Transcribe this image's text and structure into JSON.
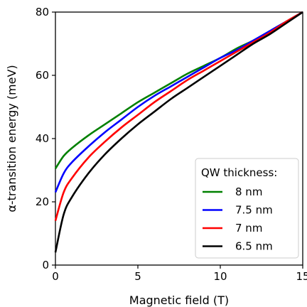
{
  "chart_data": {
    "type": "line",
    "xlabel": "Magnetic field (T)",
    "ylabel": "α-transition energy (meV)",
    "xlim": [
      0,
      15
    ],
    "ylim": [
      0,
      80
    ],
    "x_ticks": [
      "0",
      "5",
      "10",
      "15"
    ],
    "y_ticks": [
      "0",
      "20",
      "40",
      "60",
      "80"
    ],
    "grid": false,
    "legend": {
      "title": "QW thickness:",
      "placement": "lower-right"
    },
    "series": [
      {
        "name": "8 nm",
        "color": "#008000",
        "x": [
          0,
          0.5,
          1,
          2,
          3,
          4,
          5,
          6,
          7,
          8,
          9,
          10,
          11,
          12,
          13,
          14,
          15
        ],
        "y": [
          30.5,
          34.5,
          37,
          41,
          44.5,
          48,
          51.5,
          54.5,
          57.5,
          60.5,
          63,
          65.5,
          68.5,
          71,
          74,
          77,
          80
        ]
      },
      {
        "name": "7.5 nm",
        "color": "#0000ff",
        "x": [
          0,
          0.5,
          1,
          2,
          3,
          4,
          5,
          6,
          7,
          8,
          9,
          10,
          11,
          12,
          13,
          14,
          15
        ],
        "y": [
          23,
          29,
          32.5,
          37.5,
          42,
          46,
          50,
          53.5,
          56.5,
          59.5,
          62.5,
          65.5,
          68,
          71,
          74,
          77,
          80
        ]
      },
      {
        "name": "7 nm",
        "color": "#ff0000",
        "x": [
          0,
          0.5,
          1,
          2,
          3,
          4,
          5,
          6,
          7,
          8,
          9,
          10,
          11,
          12,
          13,
          14,
          15
        ],
        "y": [
          14,
          23,
          27.5,
          34,
          39,
          43.5,
          47.5,
          51.5,
          55,
          58.5,
          61.5,
          64.5,
          67.5,
          70.5,
          73.5,
          77,
          80
        ]
      },
      {
        "name": "6.5 nm",
        "color": "#000000",
        "x": [
          0,
          0.5,
          1,
          2,
          3,
          4,
          5,
          6,
          7,
          8,
          9,
          10,
          11,
          12,
          13,
          14,
          15
        ],
        "y": [
          4,
          16,
          21.5,
          29,
          35,
          40,
          44.5,
          48.5,
          52.5,
          56,
          59.5,
          63,
          66.5,
          70,
          73,
          76.5,
          80
        ]
      }
    ]
  }
}
